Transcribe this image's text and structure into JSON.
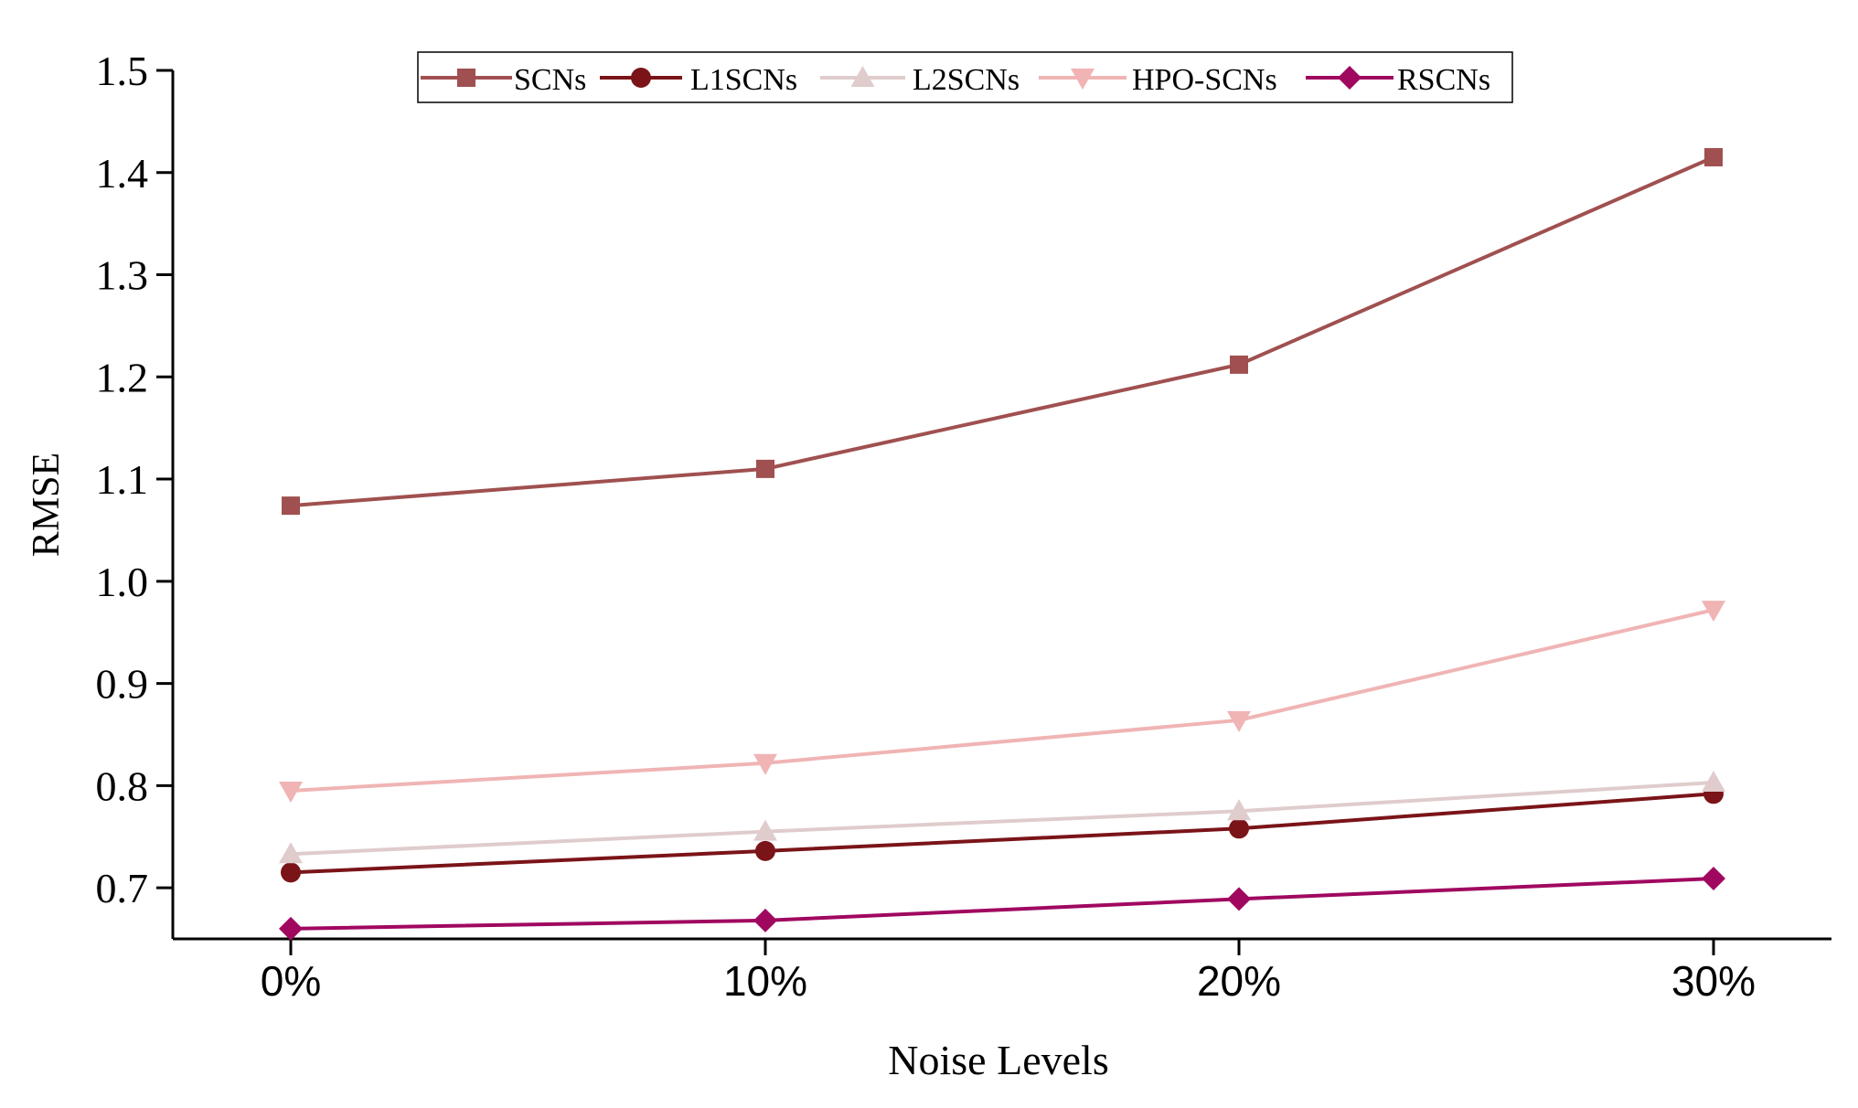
{
  "chart_data": {
    "type": "line",
    "title": "",
    "xlabel": "Noise Levels",
    "ylabel": "RMSE",
    "categories": [
      "0%",
      "10%",
      "20%",
      "30%"
    ],
    "ylim": [
      0.65,
      1.5
    ],
    "yticks": [
      "0.7",
      "0.8",
      "0.9",
      "1.0",
      "1.1",
      "1.2",
      "1.3",
      "1.4",
      "1.5"
    ],
    "grid": false,
    "legend_position": "top-center",
    "series": [
      {
        "name": "SCNs",
        "marker": "square",
        "color": "#a05050",
        "values": [
          1.074,
          1.11,
          1.212,
          1.415
        ]
      },
      {
        "name": "L1SCNs",
        "marker": "circle",
        "color": "#7a1418",
        "values": [
          0.715,
          0.736,
          0.758,
          0.792
        ]
      },
      {
        "name": "L2SCNs",
        "marker": "triangle-up",
        "color": "#e0cccc",
        "values": [
          0.733,
          0.755,
          0.775,
          0.803
        ]
      },
      {
        "name": "HPO-SCNs",
        "marker": "triangle-down",
        "color": "#f0b4b4",
        "values": [
          0.795,
          0.822,
          0.864,
          0.972
        ]
      },
      {
        "name": "RSCNs",
        "marker": "diamond",
        "color": "#a00860",
        "values": [
          0.66,
          0.668,
          0.689,
          0.709
        ]
      }
    ]
  }
}
